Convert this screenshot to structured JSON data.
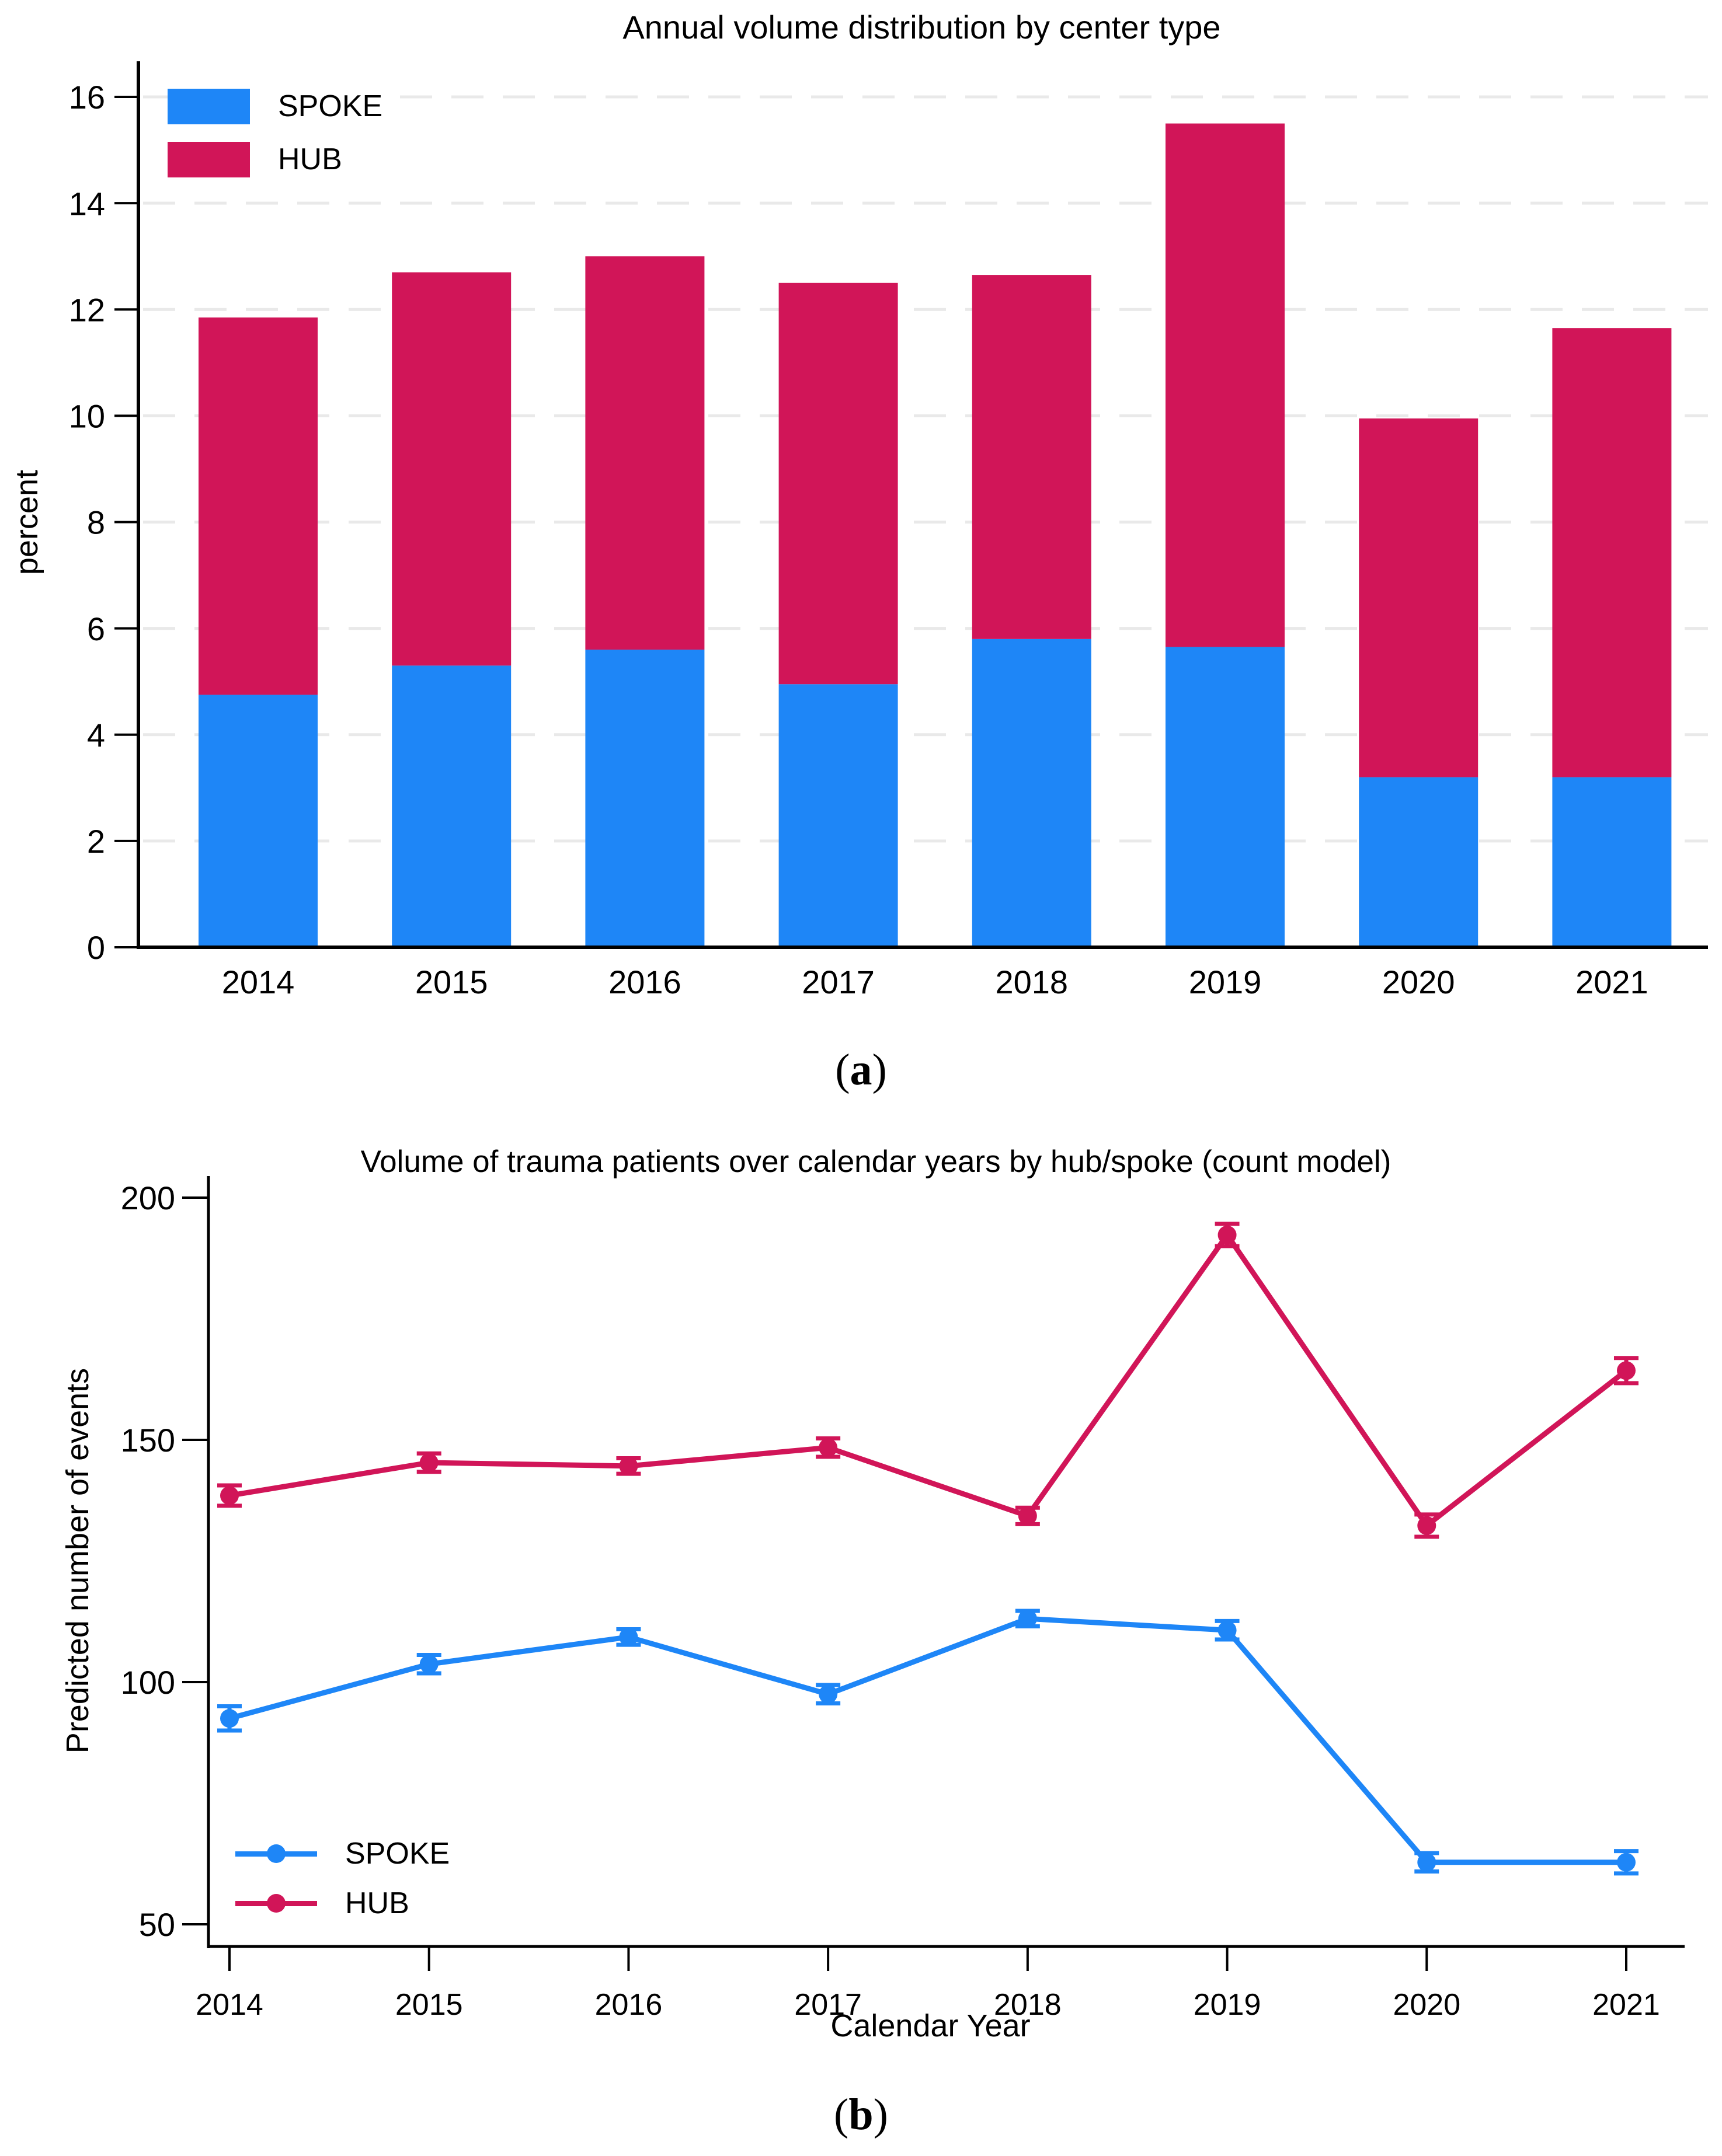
{
  "captions": {
    "a": {
      "open": "(",
      "letter": "a",
      "close": ")"
    },
    "b": {
      "open": "(",
      "letter": "b",
      "close": ")"
    }
  },
  "chart_data": [
    {
      "type": "bar",
      "stacked": true,
      "title": "Annual volume distribution by center type",
      "ylabel": "percent",
      "xlabel": "",
      "categories": [
        "2014",
        "2015",
        "2016",
        "2017",
        "2018",
        "2019",
        "2020",
        "2021"
      ],
      "series": [
        {
          "name": "SPOKE",
          "color": "#1E86F7",
          "values": [
            4.75,
            5.3,
            5.6,
            4.95,
            5.8,
            5.65,
            3.2,
            3.2
          ]
        },
        {
          "name": "HUB",
          "color": "#D11558",
          "values": [
            7.1,
            7.4,
            7.4,
            7.55,
            6.85,
            9.85,
            6.75,
            8.45
          ]
        }
      ],
      "stack_totals": [
        11.85,
        12.7,
        13.0,
        12.5,
        12.65,
        15.5,
        9.95,
        11.65
      ],
      "ylim": [
        0,
        16.6
      ],
      "yticks": [
        0,
        2,
        4,
        6,
        8,
        10,
        12,
        14,
        16
      ],
      "grid": true,
      "grid_color": "#E9E9E9",
      "legend_position": "top-left"
    },
    {
      "type": "line",
      "title": "Volume of trauma patients over calendar years by hub/spoke (count model)",
      "ylabel": "Predicted number of events",
      "xlabel": "Calendar Year",
      "x": [
        "2014",
        "2015",
        "2016",
        "2017",
        "2018",
        "2019",
        "2020",
        "2021"
      ],
      "series": [
        {
          "name": "SPOKE",
          "color": "#1E86F7",
          "values": [
            92.5,
            103.7,
            109.3,
            97.5,
            113.1,
            110.7,
            62.8,
            62.8
          ],
          "errors": [
            2.5,
            1.9,
            1.6,
            1.9,
            1.6,
            1.9,
            1.9,
            2.3
          ]
        },
        {
          "name": "HUB",
          "color": "#D11558",
          "values": [
            138.5,
            145.3,
            144.6,
            148.4,
            134.3,
            192.3,
            132.3,
            164.3
          ],
          "errors": [
            2.1,
            1.9,
            1.6,
            1.9,
            1.7,
            2.3,
            2.3,
            2.6
          ]
        }
      ],
      "ylim": [
        44,
        203
      ],
      "yticks": [
        50,
        100,
        150,
        200
      ],
      "grid": false,
      "legend_position": "bottom-left",
      "marker": "circle",
      "error_bars": true
    }
  ]
}
